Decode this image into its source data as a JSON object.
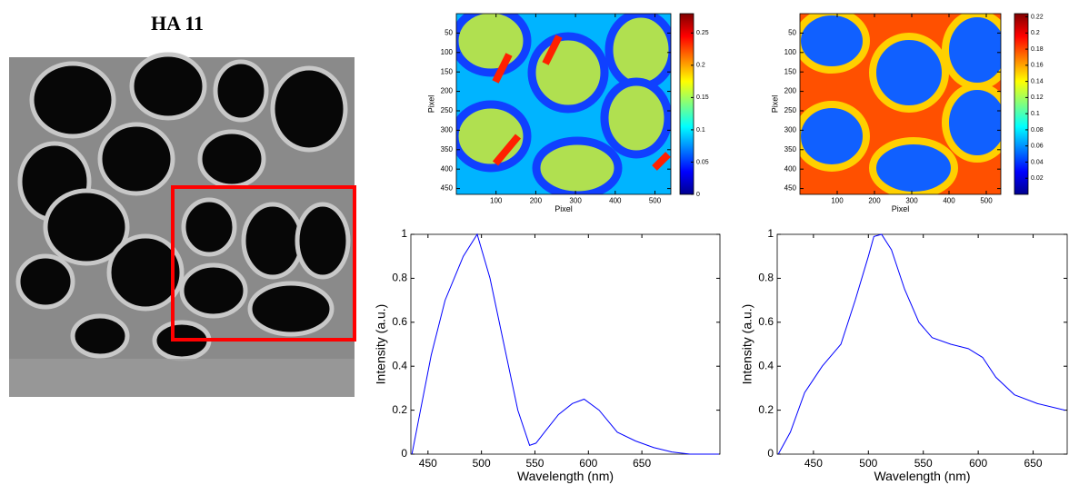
{
  "title": "HA 11",
  "chart_data": [
    {
      "type": "heatmap",
      "xlabel": "Pixel",
      "ylabel": "Pixel",
      "xlim": [
        0,
        540
      ],
      "xticks": [
        100,
        200,
        300,
        400,
        500
      ],
      "ylim": [
        0,
        465
      ],
      "yticks": [
        50,
        100,
        150,
        200,
        250,
        300,
        350,
        400,
        450
      ],
      "y_reversed": true,
      "colormap": "jet",
      "clim": [
        0,
        0.28
      ],
      "cticks": [
        0,
        0.05,
        0.1,
        0.15,
        0.2,
        0.25
      ]
    },
    {
      "type": "heatmap",
      "xlabel": "Pixel",
      "ylabel": "Pixel",
      "xlim": [
        0,
        539
      ],
      "xticks": [
        100,
        200,
        300,
        400,
        500
      ],
      "ylim": [
        0,
        465
      ],
      "yticks": [
        50,
        100,
        150,
        200,
        250,
        300,
        350,
        400,
        450
      ],
      "y_reversed": true,
      "colormap": "jet",
      "clim": [
        0,
        0.224
      ],
      "cticks": [
        0.02,
        0.04,
        0.06,
        0.08,
        0.1,
        0.12,
        0.14,
        0.16,
        0.18,
        0.2,
        0.22
      ]
    },
    {
      "type": "line",
      "xlabel": "Wavelength (nm)",
      "ylabel": "Intensity (a.u.)",
      "xlim": [
        434,
        723
      ],
      "xticks": [
        450,
        500,
        550,
        600,
        650
      ],
      "ylim": [
        0,
        1
      ],
      "yticks": [
        0,
        0.2,
        0.4,
        0.6,
        0.8,
        1
      ],
      "x": [
        435,
        441,
        453,
        466,
        483,
        496,
        508,
        521,
        534,
        545,
        551,
        559,
        572,
        585,
        596,
        610,
        627,
        644,
        661,
        678,
        695,
        722
      ],
      "series": [
        {
          "color": "#0000ff",
          "values": [
            0,
            0.15,
            0.45,
            0.7,
            0.9,
            1,
            0.8,
            0.5,
            0.2,
            0.04,
            0.05,
            0.1,
            0.18,
            0.23,
            0.25,
            0.2,
            0.1,
            0.06,
            0.03,
            0.01,
            0,
            0
          ]
        }
      ]
    },
    {
      "type": "line",
      "xlabel": "Wavelength (nm)",
      "ylabel": "Intensity (a.u.)",
      "xlim": [
        417,
        681
      ],
      "xticks": [
        450,
        500,
        550,
        600,
        650
      ],
      "ylim": [
        0,
        1
      ],
      "yticks": [
        0,
        0.2,
        0.4,
        0.6,
        0.8,
        1
      ],
      "x": [
        418,
        429,
        442,
        458,
        475,
        488,
        500,
        505,
        512,
        521,
        533,
        546,
        558,
        575,
        591,
        604,
        616,
        633,
        654,
        679
      ],
      "series": [
        {
          "color": "#0000ff",
          "values": [
            0,
            0.1,
            0.28,
            0.4,
            0.5,
            0.7,
            0.9,
            0.99,
            1,
            0.93,
            0.75,
            0.6,
            0.53,
            0.5,
            0.48,
            0.44,
            0.35,
            0.27,
            0.23,
            0.2
          ]
        }
      ]
    }
  ]
}
